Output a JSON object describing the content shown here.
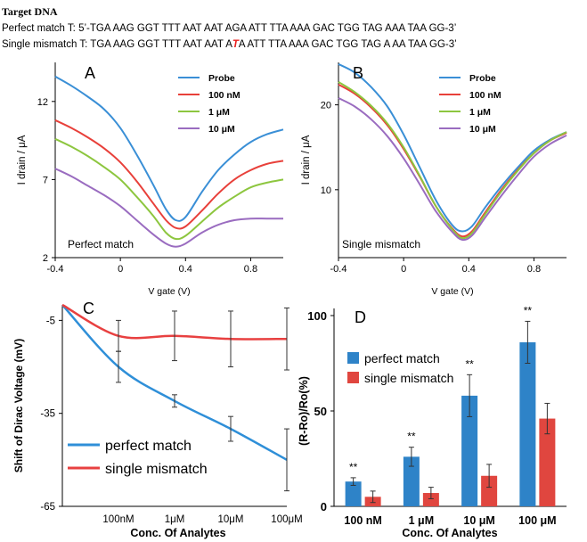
{
  "header": {
    "title": "Target DNA",
    "perfect_label": "Perfect match T:",
    "perfect_seq": "5’-TGA AAG GGT TTT AAT AAT AGA ATT TTA AAA GAC TGG TAG AAA TAA GG-3’",
    "mismatch_label": "Single mismatch T:",
    "mismatch_seq_pre": "TGA AAG GGT TTT AAT AAT A",
    "mismatch_base": "T",
    "mismatch_seq_post": "A ATT TTA AAA GAC TGG TAG A AA TAA GG-3’"
  },
  "chart_data": [
    {
      "panel": "A",
      "type": "line",
      "xlabel": "V gate (V)",
      "ylabel": "I drain / μA",
      "xlim": [
        -0.4,
        1.0
      ],
      "ylim": [
        2,
        14.5
      ],
      "xticks": [
        -0.4,
        0,
        0.4,
        0.8
      ],
      "xtick_labels": [
        "-0.4",
        "0",
        "0.4",
        "0.8"
      ],
      "yticks": [
        2,
        7,
        12
      ],
      "ytick_labels": [
        "2",
        "7",
        "12"
      ],
      "annotation": "Perfect match",
      "legend_position": "top-right",
      "series": [
        {
          "name": "Probe",
          "color": "#3a8fd6",
          "x": [
            -0.4,
            -0.3,
            -0.2,
            -0.1,
            0,
            0.1,
            0.2,
            0.28,
            0.34,
            0.4,
            0.5,
            0.6,
            0.7,
            0.8,
            0.9,
            1.0
          ],
          "y": [
            13.6,
            13.0,
            12.3,
            11.5,
            10.3,
            8.6,
            6.7,
            5.1,
            4.4,
            4.6,
            6.2,
            7.6,
            8.6,
            9.4,
            9.9,
            10.2
          ]
        },
        {
          "name": "100 nM",
          "color": "#e8403a",
          "x": [
            -0.4,
            -0.3,
            -0.2,
            -0.1,
            0,
            0.1,
            0.2,
            0.28,
            0.34,
            0.4,
            0.5,
            0.6,
            0.7,
            0.8,
            0.9,
            1.0
          ],
          "y": [
            10.8,
            10.3,
            9.7,
            9.0,
            8.1,
            6.9,
            5.5,
            4.4,
            3.9,
            4.0,
            5.0,
            6.1,
            7.0,
            7.6,
            8.0,
            8.2
          ]
        },
        {
          "name": "1 μM",
          "color": "#8dc63f",
          "x": [
            -0.4,
            -0.3,
            -0.2,
            -0.1,
            0,
            0.1,
            0.2,
            0.28,
            0.34,
            0.4,
            0.5,
            0.6,
            0.7,
            0.8,
            0.9,
            1.0
          ],
          "y": [
            9.6,
            9.1,
            8.5,
            7.8,
            7.0,
            5.9,
            4.7,
            3.6,
            3.2,
            3.4,
            4.3,
            5.2,
            5.9,
            6.5,
            6.8,
            7.0
          ]
        },
        {
          "name": "10 μM",
          "color": "#9a6cc0",
          "x": [
            -0.4,
            -0.3,
            -0.2,
            -0.1,
            0,
            0.1,
            0.2,
            0.28,
            0.34,
            0.4,
            0.5,
            0.6,
            0.7,
            0.8,
            0.9,
            1.0
          ],
          "y": [
            7.7,
            7.2,
            6.6,
            6.0,
            5.3,
            4.4,
            3.5,
            2.9,
            2.7,
            2.9,
            3.6,
            4.1,
            4.4,
            4.5,
            4.5,
            4.5
          ]
        }
      ]
    },
    {
      "panel": "B",
      "type": "line",
      "xlabel": "V gate (V)",
      "ylabel": "I drain / μA",
      "xlim": [
        -0.4,
        1.0
      ],
      "ylim": [
        2,
        25
      ],
      "xticks": [
        -0.4,
        0,
        0.4,
        0.8
      ],
      "xtick_labels": [
        "-0.4",
        "0",
        "0.4",
        "0.8"
      ],
      "yticks": [
        10,
        20
      ],
      "ytick_labels": [
        "10",
        "20"
      ],
      "annotation": "Single mismatch",
      "legend_position": "top-right",
      "series": [
        {
          "name": "Probe",
          "color": "#3a8fd6",
          "x": [
            -0.4,
            -0.3,
            -0.2,
            -0.1,
            0,
            0.1,
            0.2,
            0.3,
            0.36,
            0.42,
            0.5,
            0.6,
            0.7,
            0.8,
            0.9,
            1.0
          ],
          "y": [
            24.8,
            23.8,
            22.1,
            19.8,
            16.5,
            12.6,
            8.7,
            5.8,
            5.1,
            5.7,
            7.9,
            10.4,
            12.6,
            14.6,
            15.9,
            16.8
          ]
        },
        {
          "name": "100 nM",
          "color": "#e8403a",
          "x": [
            -0.4,
            -0.3,
            -0.2,
            -0.1,
            0,
            0.1,
            0.2,
            0.3,
            0.36,
            0.42,
            0.5,
            0.6,
            0.7,
            0.8,
            0.9,
            1.0
          ],
          "y": [
            22.4,
            21.3,
            19.7,
            17.6,
            14.8,
            11.5,
            8.0,
            5.4,
            4.5,
            5.1,
            7.3,
            10.0,
            12.3,
            14.3,
            15.8,
            16.7
          ]
        },
        {
          "name": "1 μM",
          "color": "#8dc63f",
          "x": [
            -0.4,
            -0.3,
            -0.2,
            -0.1,
            0,
            0.1,
            0.2,
            0.3,
            0.36,
            0.42,
            0.5,
            0.6,
            0.7,
            0.8,
            0.9,
            1.0
          ],
          "y": [
            22.7,
            21.5,
            19.9,
            17.8,
            15.0,
            11.6,
            8.0,
            5.3,
            4.3,
            4.9,
            7.1,
            9.8,
            12.2,
            14.3,
            15.8,
            16.8
          ]
        },
        {
          "name": "10 μM",
          "color": "#9a6cc0",
          "x": [
            -0.4,
            -0.3,
            -0.2,
            -0.1,
            0,
            0.1,
            0.2,
            0.3,
            0.36,
            0.42,
            0.5,
            0.6,
            0.7,
            0.8,
            0.9,
            1.0
          ],
          "y": [
            20.8,
            19.8,
            18.3,
            16.3,
            13.7,
            10.6,
            7.4,
            5.0,
            4.1,
            4.6,
            6.7,
            9.3,
            11.7,
            13.9,
            15.4,
            16.4
          ]
        }
      ]
    },
    {
      "panel": "C",
      "type": "line",
      "xlabel": "Conc. Of Analytes",
      "ylabel": "Shift of Dirac Voltage (mV)",
      "categories": [
        "100nM",
        "1μM",
        "10μM",
        "100μM"
      ],
      "ylim": [
        -65,
        0
      ],
      "yticks": [
        -5,
        -35,
        -65
      ],
      "ytick_labels": [
        "-5",
        "-35",
        "-65"
      ],
      "legend_position": "bottom-left",
      "series": [
        {
          "name": "perfect match",
          "color": "#2f8fd8",
          "x": [
            0,
            1,
            2,
            3,
            4
          ],
          "y": [
            0,
            -20,
            -31,
            -40,
            -50
          ],
          "err": [
            null,
            5,
            2,
            4,
            10
          ]
        },
        {
          "name": "single mismatch",
          "color": "#e84040",
          "x": [
            0,
            1,
            2,
            3,
            4
          ],
          "y": [
            0,
            -10,
            -10,
            -11,
            -11
          ],
          "err": [
            null,
            5,
            8,
            9,
            10
          ]
        }
      ]
    },
    {
      "panel": "D",
      "type": "bar",
      "xlabel": "Conc. Of Analytes",
      "ylabel": "(R-Ro)/Ro(%)",
      "categories": [
        "100 nM",
        "1 μM",
        "10 μM",
        "100 μM"
      ],
      "ylim": [
        0,
        100
      ],
      "yticks": [
        0,
        50,
        100
      ],
      "ytick_labels": [
        "0",
        "50",
        "100"
      ],
      "significance": "**",
      "legend_position": "top-left",
      "series": [
        {
          "name": "perfect match",
          "color": "#2e83c8",
          "values": [
            13,
            26,
            58,
            86
          ],
          "err": [
            2,
            5,
            11,
            11
          ]
        },
        {
          "name": "single mismatch",
          "color": "#e0463f",
          "values": [
            5,
            7,
            16,
            46
          ],
          "err": [
            3,
            3,
            6,
            8
          ]
        }
      ]
    }
  ]
}
